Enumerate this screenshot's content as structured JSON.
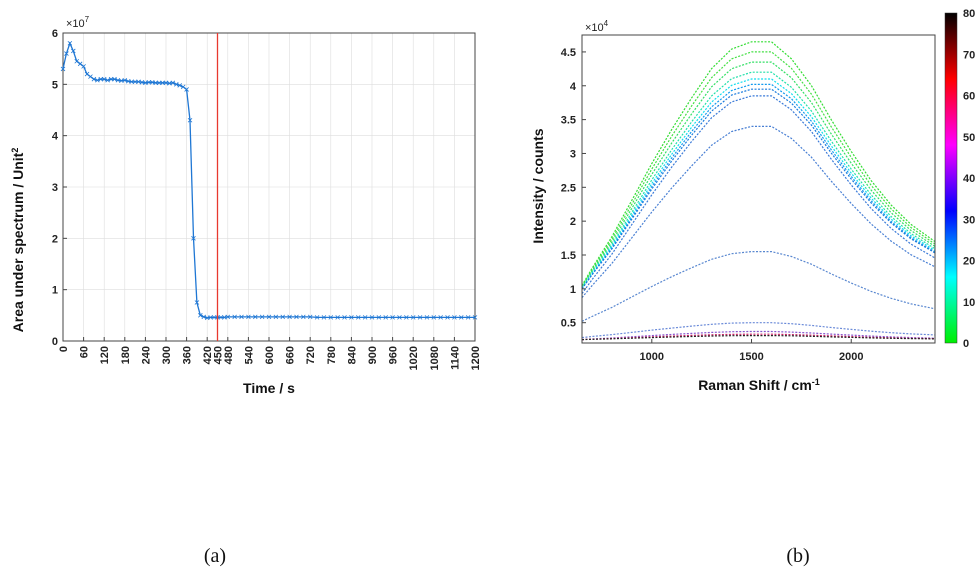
{
  "chart_data": [
    {
      "type": "line",
      "panel_label": "(a)",
      "xlabel": "Time / s",
      "ylabel": "Area under spectrum / Unit",
      "ylabel_superscript": "2",
      "y_multiplier": "×10",
      "y_multiplier_exp": "7",
      "xlim": [
        0,
        1200
      ],
      "ylim": [
        0,
        6
      ],
      "x_ticks": [
        0,
        60,
        120,
        180,
        240,
        300,
        360,
        420,
        450,
        480,
        540,
        600,
        660,
        720,
        780,
        840,
        900,
        960,
        1020,
        1080,
        1140,
        1200
      ],
      "y_ticks": [
        0,
        1,
        2,
        3,
        4,
        5,
        6
      ],
      "vertical_line": {
        "x": 450,
        "color": "#e8392f"
      },
      "grid": true,
      "series": [
        {
          "color": "#1f77d4",
          "x": [
            0,
            10,
            20,
            30,
            40,
            50,
            60,
            70,
            80,
            90,
            100,
            110,
            120,
            130,
            140,
            150,
            160,
            170,
            180,
            190,
            200,
            210,
            220,
            230,
            240,
            250,
            260,
            270,
            280,
            290,
            300,
            310,
            320,
            330,
            340,
            350,
            360,
            370,
            380,
            390,
            400,
            410,
            420,
            430,
            440,
            450,
            460,
            470,
            480,
            500,
            520,
            540,
            560,
            580,
            600,
            620,
            640,
            660,
            680,
            700,
            720,
            740,
            760,
            780,
            800,
            820,
            840,
            860,
            880,
            900,
            920,
            940,
            960,
            980,
            1000,
            1020,
            1040,
            1060,
            1080,
            1100,
            1120,
            1140,
            1160,
            1180,
            1200
          ],
          "y": [
            5.3,
            5.6,
            5.8,
            5.65,
            5.45,
            5.4,
            5.35,
            5.2,
            5.15,
            5.1,
            5.08,
            5.1,
            5.1,
            5.08,
            5.1,
            5.1,
            5.08,
            5.07,
            5.08,
            5.06,
            5.05,
            5.05,
            5.05,
            5.04,
            5.03,
            5.04,
            5.04,
            5.03,
            5.03,
            5.03,
            5.03,
            5.02,
            5.03,
            5.0,
            4.98,
            4.95,
            4.9,
            4.3,
            2.0,
            0.75,
            0.5,
            0.47,
            0.45,
            0.46,
            0.46,
            0.46,
            0.46,
            0.46,
            0.47,
            0.47,
            0.47,
            0.47,
            0.47,
            0.47,
            0.47,
            0.47,
            0.47,
            0.47,
            0.47,
            0.47,
            0.47,
            0.46,
            0.46,
            0.46,
            0.46,
            0.46,
            0.46,
            0.46,
            0.46,
            0.46,
            0.46,
            0.46,
            0.46,
            0.46,
            0.46,
            0.46,
            0.46,
            0.46,
            0.46,
            0.46,
            0.46,
            0.46,
            0.46,
            0.46,
            0.46
          ]
        }
      ]
    },
    {
      "type": "line",
      "panel_label": "(b)",
      "xlabel": "Raman Shift / cm",
      "xlabel_superscript": "-1",
      "ylabel": "Intensity / counts",
      "y_multiplier": "×10",
      "y_multiplier_exp": "4",
      "xlim": [
        650,
        2420
      ],
      "ylim": [
        2000,
        47500
      ],
      "x_ticks": [
        1000,
        1500,
        2000
      ],
      "y_ticks": [
        5000,
        10000,
        15000,
        20000,
        25000,
        30000,
        35000,
        40000,
        45000
      ],
      "y_tick_labels": [
        "0.5",
        "1",
        "1.5",
        "2",
        "2.5",
        "3",
        "3.5",
        "4",
        "4.5"
      ],
      "colorbar": {
        "tick_labels": [
          "0",
          "10",
          "20",
          "30",
          "40",
          "50",
          "60",
          "70",
          "80"
        ],
        "colors": [
          "#00ee00",
          "#00ffff",
          "#0000ff",
          "#ff00ff",
          "#ff0000",
          "#000000"
        ]
      },
      "series_shape": {
        "x": [
          650,
          700,
          800,
          900,
          1000,
          1100,
          1200,
          1300,
          1400,
          1500,
          1600,
          1700,
          1800,
          1900,
          2000,
          2100,
          2200,
          2300,
          2420
        ],
        "relative_y": [
          0.0,
          0.07,
          0.2,
          0.35,
          0.5,
          0.64,
          0.77,
          0.89,
          0.97,
          1.0,
          1.0,
          0.93,
          0.82,
          0.68,
          0.55,
          0.43,
          0.33,
          0.25,
          0.18
        ]
      },
      "series": [
        {
          "color": "#33dd33",
          "start": 10500,
          "peak": 46500
        },
        {
          "color": "#44e044",
          "start": 10400,
          "peak": 45000
        },
        {
          "color": "#33e066",
          "start": 10300,
          "peak": 43500
        },
        {
          "color": "#22e0aa",
          "start": 10200,
          "peak": 42000
        },
        {
          "color": "#11ddee",
          "start": 10100,
          "peak": 41000
        },
        {
          "color": "#1199ee",
          "start": 10000,
          "peak": 40200
        },
        {
          "color": "#1a7bdd",
          "start": 10000,
          "peak": 39500
        },
        {
          "color": "#3a7ad8",
          "start": 9300,
          "peak": 38500
        },
        {
          "color": "#4a80d4",
          "start": 8700,
          "peak": 34000
        },
        {
          "color": "#5a88d0",
          "start": 5200,
          "peak": 15500
        },
        {
          "color": "#6a8ad8",
          "start": 2800,
          "peak": 5000
        },
        {
          "color": "#8855cc",
          "start": 2500,
          "peak": 3700
        },
        {
          "color": "#cc2266",
          "start": 2500,
          "peak": 3300
        },
        {
          "color": "#222222",
          "start": 2500,
          "peak": 3100
        }
      ]
    }
  ]
}
